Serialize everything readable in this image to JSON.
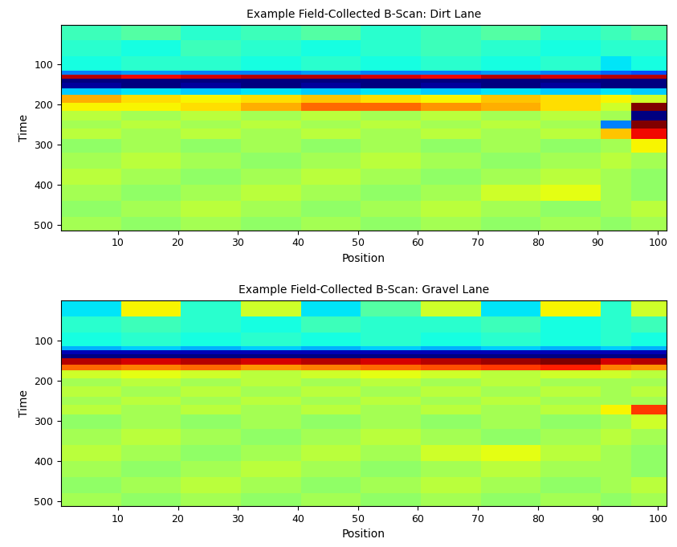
{
  "chart_data": [
    {
      "type": "heatmap",
      "title": "Example Field-Collected B-Scan: Dirt Lane",
      "x_label": "Position",
      "y_label": "Time",
      "color": "jet",
      "xlim": [
        0.5,
        101.5
      ],
      "ylim": [
        512.5,
        0.5
      ],
      "xticks": [
        10,
        20,
        30,
        40,
        50,
        60,
        70,
        80,
        90,
        100
      ],
      "yticks": [
        100,
        200,
        300,
        400,
        500
      ],
      "clim": [
        -1,
        1
      ],
      "x_edges": [
        0.5,
        10.5,
        20.5,
        30.5,
        40.5,
        50.5,
        60.5,
        70.5,
        80.5,
        90.5,
        95.5,
        101.5
      ],
      "y_edges": [
        0.5,
        40,
        80,
        115,
        125,
        135,
        145,
        160,
        175,
        195,
        215,
        240,
        260,
        285,
        320,
        360,
        400,
        440,
        480,
        512.5
      ],
      "cells": [
        [
          -0.15,
          -0.1,
          -0.2,
          -0.15,
          -0.1,
          -0.2,
          -0.15,
          -0.1,
          -0.2,
          -0.15,
          -0.1
        ],
        [
          -0.2,
          -0.25,
          -0.15,
          -0.2,
          -0.25,
          -0.2,
          -0.15,
          -0.2,
          -0.25,
          -0.2,
          -0.2
        ],
        [
          -0.25,
          -0.2,
          -0.2,
          -0.25,
          -0.2,
          -0.25,
          -0.2,
          -0.25,
          -0.2,
          -0.3,
          -0.25
        ],
        [
          -0.5,
          -0.45,
          -0.5,
          -0.5,
          -0.45,
          -0.5,
          -0.5,
          -0.45,
          -0.5,
          -0.55,
          -0.6
        ],
        [
          0.9,
          0.8,
          0.85,
          0.9,
          0.9,
          0.85,
          0.8,
          0.9,
          0.85,
          0.9,
          0.9
        ],
        [
          -1,
          -1,
          -1,
          -1,
          -1,
          -1,
          -1,
          -1,
          -1,
          -1,
          -1
        ],
        [
          -0.95,
          -1,
          -0.95,
          -1,
          -0.95,
          -1,
          -0.95,
          -1,
          -0.95,
          -1,
          -1
        ],
        [
          -0.35,
          -0.3,
          -0.35,
          -0.3,
          -0.35,
          -0.3,
          -0.35,
          -0.3,
          -0.35,
          -0.3,
          -0.35
        ],
        [
          0.45,
          0.35,
          0.3,
          0.35,
          0.4,
          0.35,
          0.3,
          0.4,
          0.35,
          0.3,
          0.2
        ],
        [
          0.3,
          0.3,
          0.35,
          0.45,
          0.6,
          0.6,
          0.5,
          0.45,
          0.35,
          0.2,
          1
        ],
        [
          0.15,
          0.1,
          0.15,
          0.1,
          0.15,
          0.1,
          0.15,
          0.1,
          0.15,
          0.1,
          -1
        ],
        [
          0.1,
          0.15,
          0.1,
          0.15,
          0.1,
          0.15,
          0.1,
          0.15,
          0.1,
          -0.5,
          1
        ],
        [
          0.15,
          0.1,
          0.15,
          0.1,
          0.15,
          0.1,
          0.15,
          0.1,
          0.15,
          0.4,
          0.8
        ],
        [
          0.05,
          0.1,
          0.05,
          0.1,
          0.05,
          0.1,
          0.05,
          0.1,
          0.05,
          0.1,
          0.3
        ],
        [
          0.1,
          0.15,
          0.1,
          0.05,
          0.1,
          0.15,
          0.1,
          0.05,
          0.1,
          0.15,
          0.1
        ],
        [
          0.15,
          0.1,
          0.05,
          0.1,
          0.15,
          0.1,
          0.05,
          0.1,
          0.15,
          0.1,
          0.05
        ],
        [
          0.1,
          0.05,
          0.1,
          0.15,
          0.1,
          0.05,
          0.1,
          0.2,
          0.25,
          0.1,
          0.05
        ],
        [
          0.05,
          0.1,
          0.15,
          0.1,
          0.05,
          0.1,
          0.15,
          0.1,
          0.05,
          0.1,
          0.15
        ],
        [
          0.1,
          0.05,
          0.1,
          0.05,
          0.1,
          0.05,
          0.1,
          0.05,
          0.1,
          0.05,
          0.1
        ]
      ]
    },
    {
      "type": "heatmap",
      "title": "Example Field-Collected B-Scan: Gravel Lane",
      "x_label": "Position",
      "y_label": "Time",
      "color": "jet",
      "xlim": [
        0.5,
        101.5
      ],
      "ylim": [
        512.5,
        0.5
      ],
      "xticks": [
        10,
        20,
        30,
        40,
        50,
        60,
        70,
        80,
        90,
        100
      ],
      "yticks": [
        100,
        200,
        300,
        400,
        500
      ],
      "clim": [
        -1,
        1
      ],
      "x_edges": [
        0.5,
        10.5,
        20.5,
        30.5,
        40.5,
        50.5,
        60.5,
        70.5,
        80.5,
        90.5,
        95.5,
        101.5
      ],
      "y_edges": [
        0.5,
        40,
        80,
        115,
        125,
        135,
        145,
        160,
        175,
        195,
        215,
        240,
        260,
        285,
        320,
        360,
        400,
        440,
        480,
        512.5
      ],
      "cells": [
        [
          -0.3,
          0.3,
          -0.2,
          0.2,
          -0.3,
          -0.1,
          0.2,
          -0.3,
          0.3,
          -0.2,
          0.2
        ],
        [
          -0.2,
          -0.15,
          -0.2,
          -0.25,
          -0.15,
          -0.2,
          -0.2,
          -0.15,
          -0.25,
          -0.2,
          -0.15
        ],
        [
          -0.25,
          -0.2,
          -0.25,
          -0.2,
          -0.25,
          -0.2,
          -0.25,
          -0.2,
          -0.25,
          -0.2,
          -0.25
        ],
        [
          -0.4,
          -0.35,
          -0.4,
          -0.35,
          -0.4,
          -0.35,
          -0.4,
          -0.35,
          -0.4,
          -0.35,
          -0.4
        ],
        [
          -0.9,
          -0.9,
          -0.9,
          -0.9,
          -0.9,
          -0.9,
          -0.9,
          -0.9,
          -0.9,
          -0.9,
          -0.9
        ],
        [
          -1,
          -1,
          -1,
          -1,
          -1,
          -1,
          -1,
          -1,
          -1,
          -1,
          -1
        ],
        [
          0.9,
          0.85,
          0.9,
          0.85,
          0.9,
          0.85,
          0.9,
          0.95,
          1,
          0.85,
          0.9
        ],
        [
          0.6,
          0.55,
          0.6,
          0.5,
          0.55,
          0.6,
          0.65,
          0.7,
          0.75,
          0.55,
          0.5
        ],
        [
          0.2,
          0.25,
          0.2,
          0.15,
          0.2,
          0.25,
          0.2,
          0.15,
          0.2,
          0.2,
          0.15
        ],
        [
          0.1,
          0.15,
          0.1,
          0.15,
          0.1,
          0.15,
          0.1,
          0.15,
          0.1,
          0.1,
          0.1
        ],
        [
          0.15,
          0.1,
          0.15,
          0.1,
          0.15,
          0.1,
          0.15,
          0.1,
          0.15,
          0.1,
          0.15
        ],
        [
          0.1,
          0.15,
          0.1,
          0.15,
          0.1,
          0.15,
          0.1,
          0.15,
          0.1,
          0.1,
          0.1
        ],
        [
          0.15,
          0.1,
          0.15,
          0.1,
          0.15,
          0.1,
          0.15,
          0.1,
          0.15,
          0.3,
          0.7
        ],
        [
          0.05,
          0.1,
          0.05,
          0.1,
          0.05,
          0.1,
          0.05,
          0.1,
          0.05,
          0.1,
          0.2
        ],
        [
          0.1,
          0.15,
          0.1,
          0.05,
          0.1,
          0.15,
          0.1,
          0.05,
          0.1,
          0.15,
          0.1
        ],
        [
          0.15,
          0.1,
          0.05,
          0.1,
          0.15,
          0.1,
          0.2,
          0.25,
          0.15,
          0.1,
          0.05
        ],
        [
          0.1,
          0.05,
          0.1,
          0.15,
          0.1,
          0.05,
          0.1,
          0.15,
          0.1,
          0.1,
          0.05
        ],
        [
          0.05,
          0.1,
          0.15,
          0.1,
          0.05,
          0.1,
          0.15,
          0.1,
          0.05,
          0.1,
          0.15
        ],
        [
          0.1,
          0.05,
          0.1,
          0.05,
          0.1,
          0.05,
          0.1,
          0.05,
          0.1,
          0.05,
          0.1
        ]
      ]
    }
  ]
}
